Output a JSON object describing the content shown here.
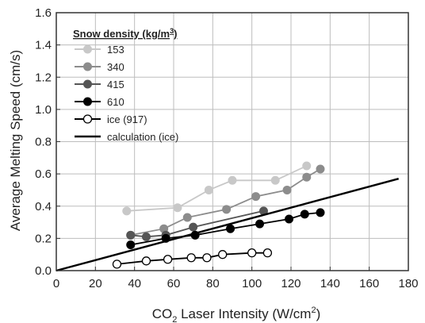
{
  "chart_data": {
    "type": "line",
    "xlabel": "CO2 Laser Intensity (W/cm2)",
    "ylabel": "Average Melting Speed (cm/s)",
    "xlim": [
      0,
      180
    ],
    "ylim": [
      0,
      1.6
    ],
    "xticks": [
      "0",
      "20",
      "40",
      "60",
      "80",
      "100",
      "120",
      "140",
      "160",
      "180"
    ],
    "yticks": [
      "0.0",
      "0.2",
      "0.4",
      "0.6",
      "0.8",
      "1.0",
      "1.2",
      "1.4",
      "1.6"
    ],
    "grid": true,
    "legend": {
      "title": "Snow density (kg/m3)",
      "placement": "top-left"
    },
    "series": [
      {
        "name": "153",
        "color": "#c8c8c8",
        "marker": "filled-circle",
        "x": [
          36,
          62,
          78,
          90,
          112,
          128
        ],
        "y": [
          0.37,
          0.39,
          0.5,
          0.56,
          0.56,
          0.65
        ]
      },
      {
        "name": "340",
        "color": "#8c8c8c",
        "marker": "filled-circle",
        "x": [
          38,
          55,
          67,
          87,
          102,
          118,
          128,
          135
        ],
        "y": [
          0.22,
          0.26,
          0.33,
          0.38,
          0.46,
          0.5,
          0.58,
          0.63
        ]
      },
      {
        "name": "415",
        "color": "#555555",
        "marker": "filled-circle",
        "x": [
          38,
          46,
          56,
          70,
          106
        ],
        "y": [
          0.22,
          0.21,
          0.22,
          0.27,
          0.37
        ]
      },
      {
        "name": "610",
        "color": "#000000",
        "marker": "filled-circle",
        "x": [
          38,
          56,
          71,
          89,
          104,
          119,
          127,
          135
        ],
        "y": [
          0.16,
          0.2,
          0.22,
          0.26,
          0.29,
          0.32,
          0.35,
          0.36
        ]
      },
      {
        "name": "ice (917)",
        "color": "#000000",
        "marker": "open-circle",
        "x": [
          31,
          46,
          57,
          69,
          77,
          85,
          100,
          108
        ],
        "y": [
          0.04,
          0.06,
          0.07,
          0.08,
          0.08,
          0.1,
          0.11,
          0.11
        ]
      },
      {
        "name": "calculation (ice)",
        "color": "#000000",
        "marker": "none",
        "linewidth": "thick",
        "x": [
          0,
          175
        ],
        "y": [
          0.0,
          0.57
        ]
      }
    ]
  }
}
